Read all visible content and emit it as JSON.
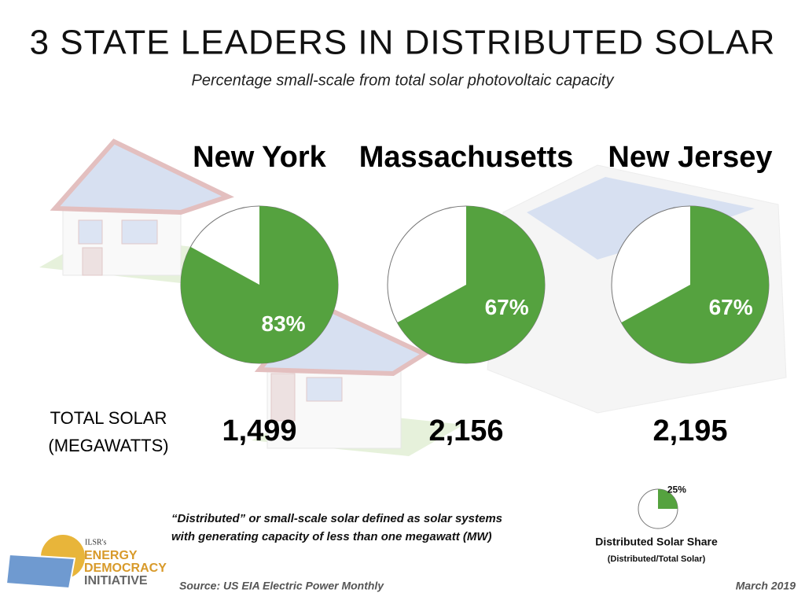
{
  "title": "3 STATE LEADERS IN DISTRIBUTED SOLAR",
  "subtitle": "Percentage small-scale from total solar photovoltaic capacity",
  "chart_data": [
    {
      "type": "pie",
      "title": "New York",
      "values": [
        83
      ],
      "value_labels": [
        "83%"
      ],
      "color": "#55a23f",
      "total_solar": "1,499"
    },
    {
      "type": "pie",
      "title": "Massachusetts",
      "values": [
        67
      ],
      "value_labels": [
        "67%"
      ],
      "color": "#55a23f",
      "total_solar": "2,156"
    },
    {
      "type": "pie",
      "title": "New Jersey",
      "values": [
        67
      ],
      "value_labels": [
        "67%"
      ],
      "color": "#55a23f",
      "total_solar": "2,195"
    },
    {
      "type": "pie",
      "title": "Distributed Solar Share",
      "subtitle": "(Distributed/Total Solar)",
      "values": [
        25
      ],
      "value_labels": [
        "25%"
      ],
      "color": "#55a23f"
    }
  ],
  "total_label": [
    "TOTAL SOLAR",
    "(MEGAWATTS)"
  ],
  "footnote": [
    "“Distributed” or small-scale solar defined as solar systems",
    "with generating capacity of less than one megawatt (MW)"
  ],
  "source": "Source: US EIA Electric Power Monthly",
  "date": "March 2019",
  "logo": [
    "ILSR's",
    "ENERGY",
    "DEMOCRACY",
    "INITIATIVE"
  ]
}
